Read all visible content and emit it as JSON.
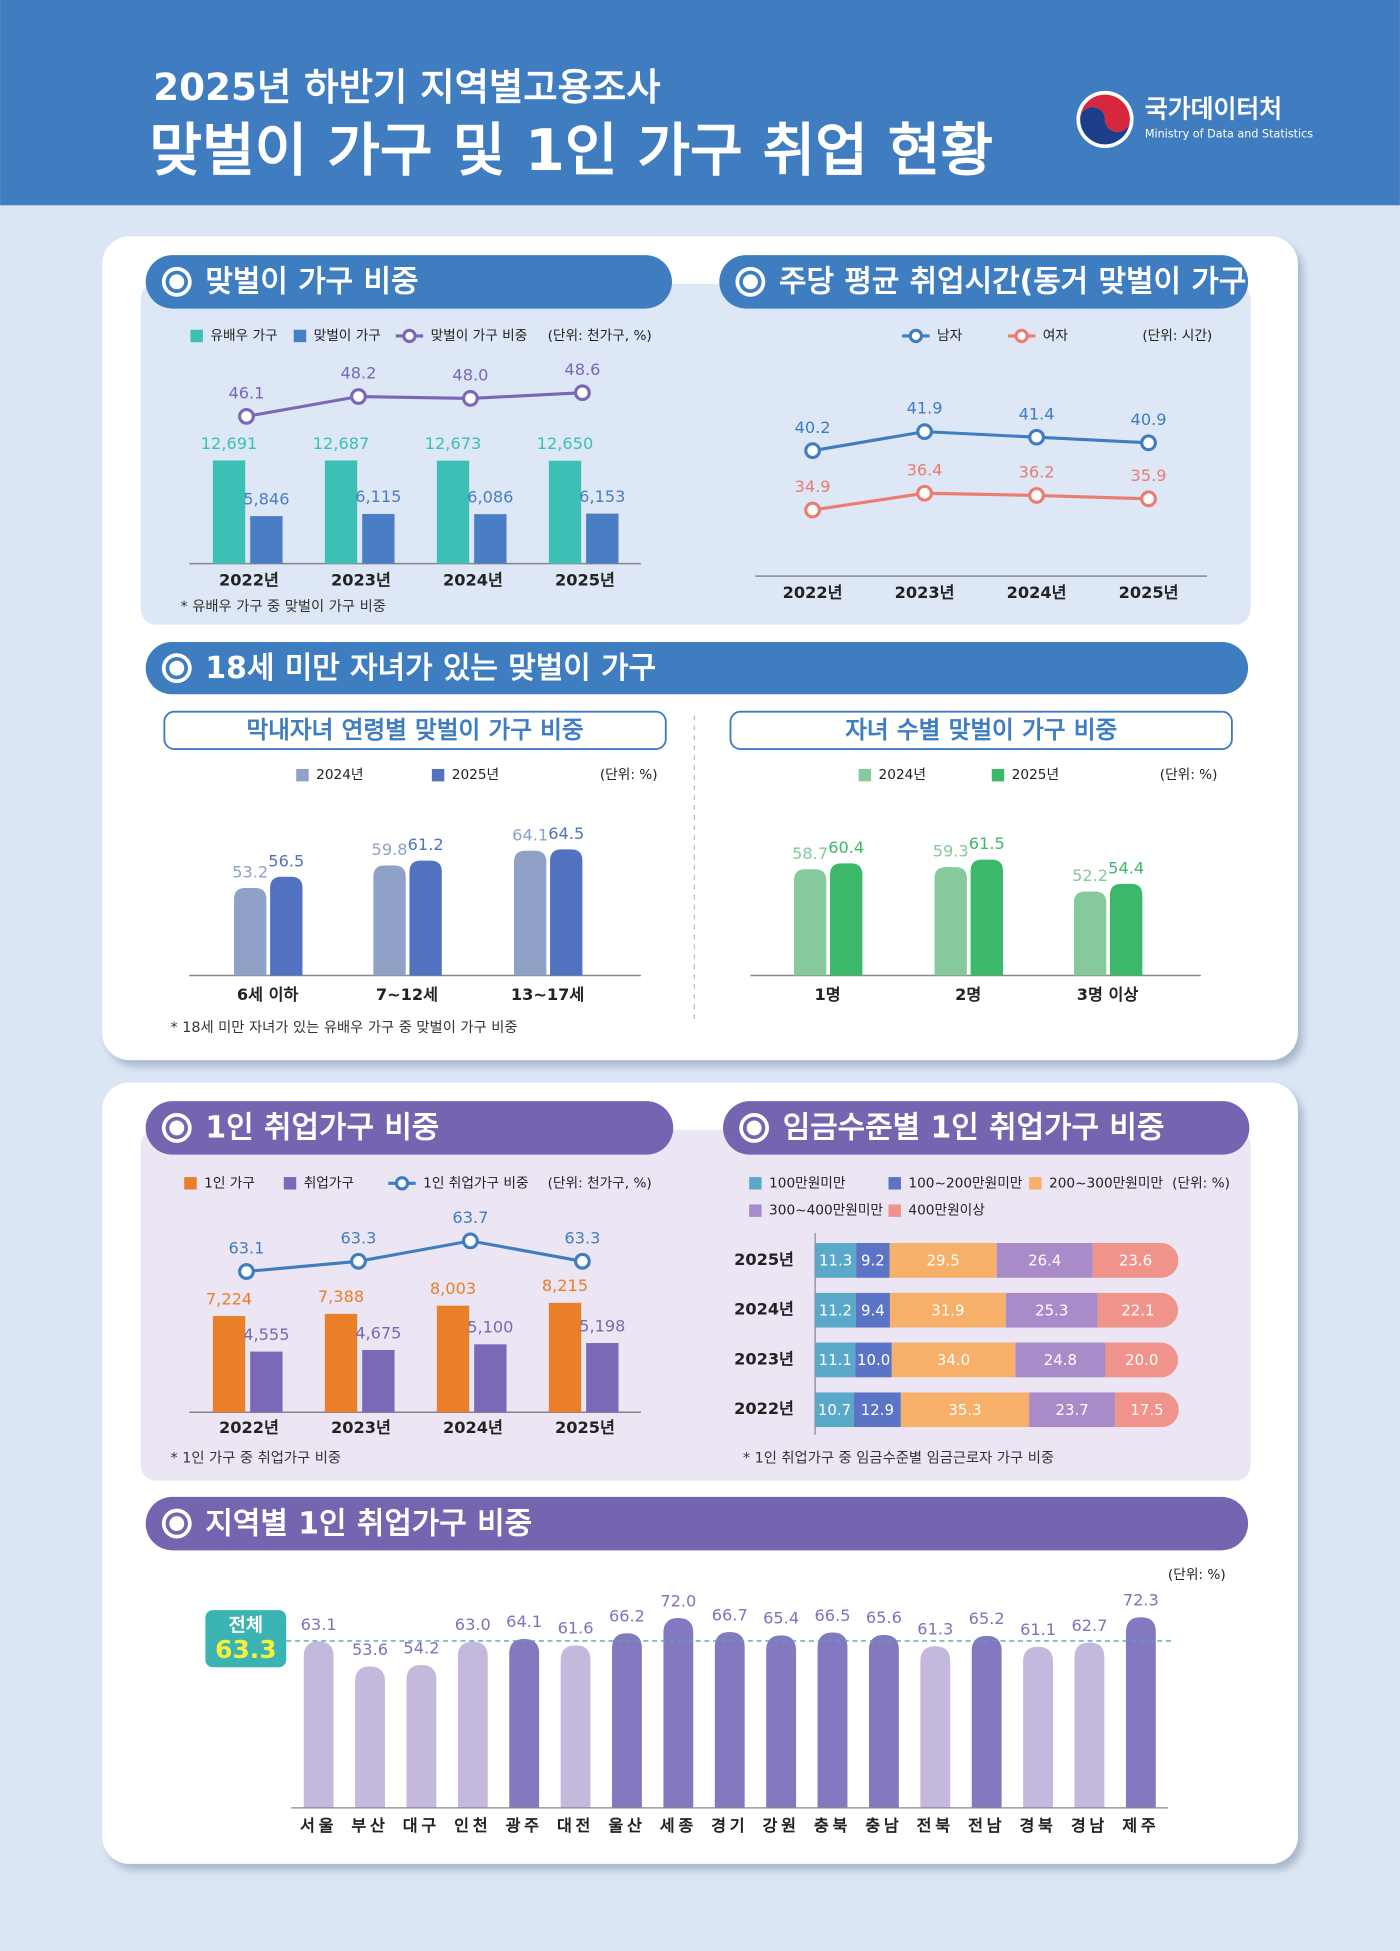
{
  "header": {
    "subtitle": "2025년 하반기 지역별고용조사",
    "title": "맞벌이 가구 및 1인 가구 취업 현황",
    "logo": "국가데이터처",
    "logo_en": "Ministry of Data and Statistics"
  },
  "section_title": "18세 미만 자녀가 있는 맞벌이 가구",
  "chart_data": [
    {
      "type": "bar_line",
      "title": "맞벌이 가구 비중",
      "unit": "(단위: 천가구, %)",
      "note": "* 유배우 가구 중 맞벌이 가구 비중",
      "categories": [
        "2022년",
        "2023년",
        "2024년",
        "2025년"
      ],
      "series": [
        {
          "name": "유배우 가구",
          "color": "#3cc0b5",
          "values": [
            12691,
            12687,
            12673,
            12650
          ],
          "value_labels": [
            "12,691",
            "12,687",
            "12,673",
            "12,650"
          ]
        },
        {
          "name": "맞벌이 가구",
          "color": "#4a7ec4",
          "values": [
            5846,
            6115,
            6086,
            6153
          ],
          "value_labels": [
            "5,846",
            "6,115",
            "6,086",
            "6,153"
          ]
        },
        {
          "name": "맞벌이 가구 비중",
          "type": "line",
          "color": "#7b66b8",
          "values": [
            46.1,
            48.2,
            48.0,
            48.6
          ],
          "value_labels": [
            "46.1",
            "48.2",
            "48.0",
            "48.6"
          ]
        }
      ]
    },
    {
      "type": "line",
      "title": "주당 평균 취업시간(동거 맞벌이 가구)",
      "unit": "(단위: 시간)",
      "categories": [
        "2022년",
        "2023년",
        "2024년",
        "2025년"
      ],
      "series": [
        {
          "name": "남자",
          "color": "#3f7dc1",
          "values": [
            40.2,
            41.9,
            41.4,
            40.9
          ]
        },
        {
          "name": "여자",
          "color": "#ec7b70",
          "values": [
            34.9,
            36.4,
            36.2,
            35.9
          ]
        }
      ]
    },
    {
      "type": "bar",
      "title": "막내자녀 연령별 맞벌이 가구 비중",
      "unit": "(단위: %)",
      "note": "* 18세 미만 자녀가 있는 유배우 가구 중 맞벌이 가구 비중",
      "categories": [
        "6세 이하",
        "7~12세",
        "13~17세"
      ],
      "series": [
        {
          "name": "2024년",
          "color": "#8fa1c6",
          "values": [
            53.2,
            59.8,
            64.1
          ]
        },
        {
          "name": "2025년",
          "color": "#5072c0",
          "values": [
            56.5,
            61.2,
            64.5
          ]
        }
      ]
    },
    {
      "type": "bar",
      "title": "자녀 수별 맞벌이 가구 비중",
      "unit": "(단위: %)",
      "categories": [
        "1명",
        "2명",
        "3명 이상"
      ],
      "series": [
        {
          "name": "2024년",
          "color": "#86c99c",
          "values": [
            58.7,
            59.3,
            52.2
          ]
        },
        {
          "name": "2025년",
          "color": "#3cb86a",
          "values": [
            60.4,
            61.5,
            54.4
          ]
        }
      ]
    },
    {
      "type": "bar_line",
      "title": "1인 취업가구 비중",
      "unit": "(단위: 천가구, %)",
      "note": "* 1인 가구 중 취업가구 비중",
      "categories": [
        "2022년",
        "2023년",
        "2024년",
        "2025년"
      ],
      "series": [
        {
          "name": "1인 가구",
          "color": "#ea7f2a",
          "values": [
            7224,
            7388,
            8003,
            8215
          ],
          "value_labels": [
            "7,224",
            "7,388",
            "8,003",
            "8,215"
          ]
        },
        {
          "name": "취업가구",
          "color": "#7b68b6",
          "values": [
            4555,
            4675,
            5100,
            5198
          ],
          "value_labels": [
            "4,555",
            "4,675",
            "5,100",
            "5,198"
          ]
        },
        {
          "name": "1인 취업가구 비중",
          "type": "line",
          "color": "#3f7dc1",
          "values": [
            63.1,
            63.3,
            63.7,
            63.3
          ]
        }
      ]
    },
    {
      "type": "stacked_bar_h",
      "title": "임금수준별 1인 취업가구 비중",
      "unit": "(단위: %)",
      "note": "* 1인 취업가구 중 임금수준별 임금근로자 가구 비중",
      "categories": [
        "2025년",
        "2024년",
        "2023년",
        "2022년"
      ],
      "series": [
        {
          "name": "100만원미만",
          "color": "#5aa9c9",
          "values": [
            11.3,
            11.2,
            11.1,
            10.7
          ]
        },
        {
          "name": "100~200만원미만",
          "color": "#5b74c6",
          "values": [
            9.2,
            9.4,
            10.0,
            12.9
          ],
          "value_labels": [
            "9.2",
            "9.4",
            "10.0",
            "12.9"
          ]
        },
        {
          "name": "200~300만원미만",
          "color": "#f6b06a",
          "values": [
            29.5,
            31.9,
            34.0,
            35.3
          ],
          "value_labels": [
            "29.5",
            "31.9",
            "34.0",
            "35.3"
          ]
        },
        {
          "name": "300~400만원미만",
          "color": "#a98bca",
          "values": [
            26.4,
            25.3,
            24.8,
            23.7
          ]
        },
        {
          "name": "400만원이상",
          "color": "#f0938a",
          "values": [
            23.6,
            22.1,
            20.0,
            17.5
          ],
          "value_labels": [
            "23.6",
            "22.1",
            "20.0",
            "17.5"
          ]
        }
      ]
    },
    {
      "type": "bar",
      "title": "지역별 1인 취업가구 비중",
      "unit": "(단위: %)",
      "categories": [
        "서울",
        "부산",
        "대구",
        "인천",
        "광주",
        "대전",
        "울산",
        "세종",
        "경기",
        "강원",
        "충북",
        "충남",
        "전북",
        "전남",
        "경북",
        "경남",
        "제주"
      ],
      "values": [
        63.1,
        53.6,
        54.2,
        63.0,
        64.1,
        61.6,
        66.2,
        72.0,
        66.7,
        65.4,
        66.5,
        65.6,
        61.3,
        65.2,
        61.1,
        62.7,
        72.3
      ],
      "value_labels": [
        "63.1",
        "53.6",
        "54.2",
        "63.0",
        "64.1",
        "61.6",
        "66.2",
        "72.0",
        "66.7",
        "65.4",
        "66.5",
        "65.6",
        "61.3",
        "65.2",
        "61.1",
        "62.7",
        "72.3"
      ],
      "colors": [
        "#c4b8dc",
        "#c4b8dc",
        "#c4b8dc",
        "#c4b8dc",
        "#8577c0",
        "#c4b8dc",
        "#8577c0",
        "#8577c0",
        "#8577c0",
        "#8577c0",
        "#8577c0",
        "#8577c0",
        "#c4b8dc",
        "#8577c0",
        "#c4b8dc",
        "#c4b8dc",
        "#8577c0"
      ],
      "reference": {
        "label": "전체",
        "value": 63.3
      }
    }
  ]
}
